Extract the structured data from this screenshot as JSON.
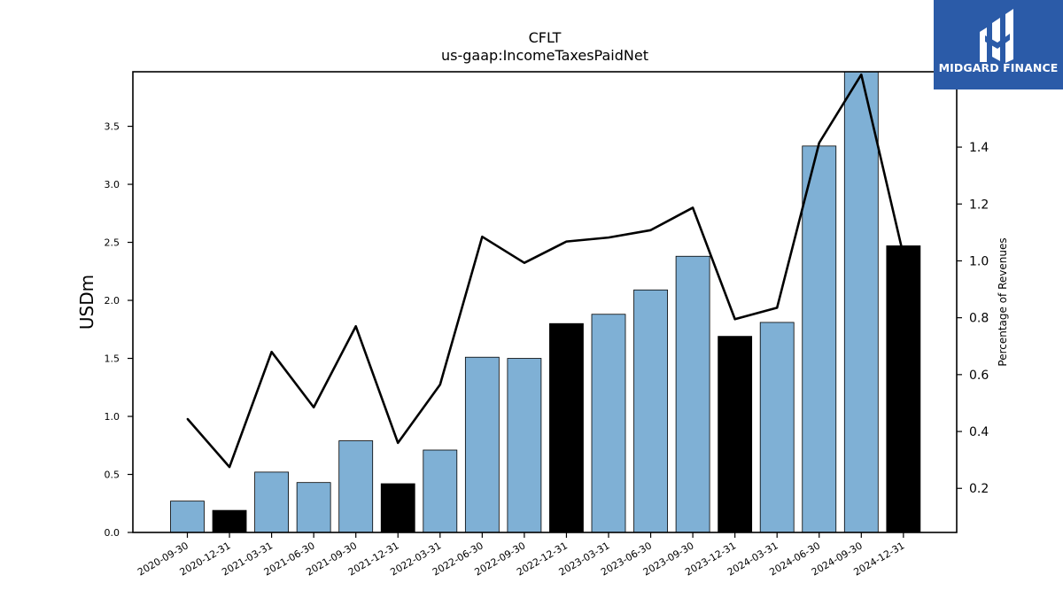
{
  "chart_data": {
    "type": "bar",
    "title": "CFLT",
    "subtitle": "us-gaap:IncomeTaxesPaidNet",
    "ylabel": "USDm",
    "y2label": "Percentage of Revenues",
    "categories": [
      "2020-09-30",
      "2020-12-31",
      "2021-03-31",
      "2021-06-30",
      "2021-09-30",
      "2021-12-31",
      "2022-03-31",
      "2022-06-30",
      "2022-09-30",
      "2022-12-31",
      "2023-03-31",
      "2023-06-30",
      "2023-09-30",
      "2023-12-31",
      "2024-03-31",
      "2024-06-30",
      "2024-09-30",
      "2024-12-31"
    ],
    "series": [
      {
        "type": "bar",
        "axis": "left",
        "values": [
          0.27,
          0.19,
          0.52,
          0.43,
          0.79,
          0.42,
          0.71,
          1.51,
          1.5,
          1.8,
          1.88,
          2.09,
          2.38,
          1.69,
          1.81,
          3.33,
          3.97,
          2.47
        ],
        "colors": [
          "#7fb0d5",
          "#000000",
          "#7fb0d5",
          "#7fb0d5",
          "#7fb0d5",
          "#000000",
          "#7fb0d5",
          "#7fb0d5",
          "#7fb0d5",
          "#000000",
          "#7fb0d5",
          "#7fb0d5",
          "#7fb0d5",
          "#000000",
          "#7fb0d5",
          "#7fb0d5",
          "#7fb0d5",
          "#000000"
        ]
      },
      {
        "type": "line",
        "axis": "right",
        "color": "#000000",
        "values": [
          0.445,
          0.275,
          0.68,
          0.485,
          0.77,
          0.36,
          0.565,
          1.085,
          0.993,
          1.068,
          1.082,
          1.108,
          1.187,
          0.795,
          0.835,
          1.415,
          1.655,
          1.02
        ]
      }
    ],
    "ylim": [
      0,
      3.97
    ],
    "yticks": [
      0.0,
      0.5,
      1.0,
      1.5,
      2.0,
      2.5,
      3.0,
      3.5
    ],
    "ytick_labels": [
      "0.0",
      "0.5",
      "1.0",
      "1.5",
      "2.0",
      "2.5",
      "3.0",
      "3.5"
    ],
    "y2lim": [
      0.045,
      1.665
    ],
    "y2ticks": [
      0.2,
      0.4,
      0.6,
      0.8,
      1.0,
      1.2,
      1.4
    ],
    "y2tick_labels": [
      "0.2",
      "0.4",
      "0.6",
      "0.8",
      "1.0",
      "1.2",
      "1.4"
    ],
    "grid": false
  },
  "logo": {
    "text": "MIDGARD FINANCE",
    "background": "#2b5ba8"
  }
}
